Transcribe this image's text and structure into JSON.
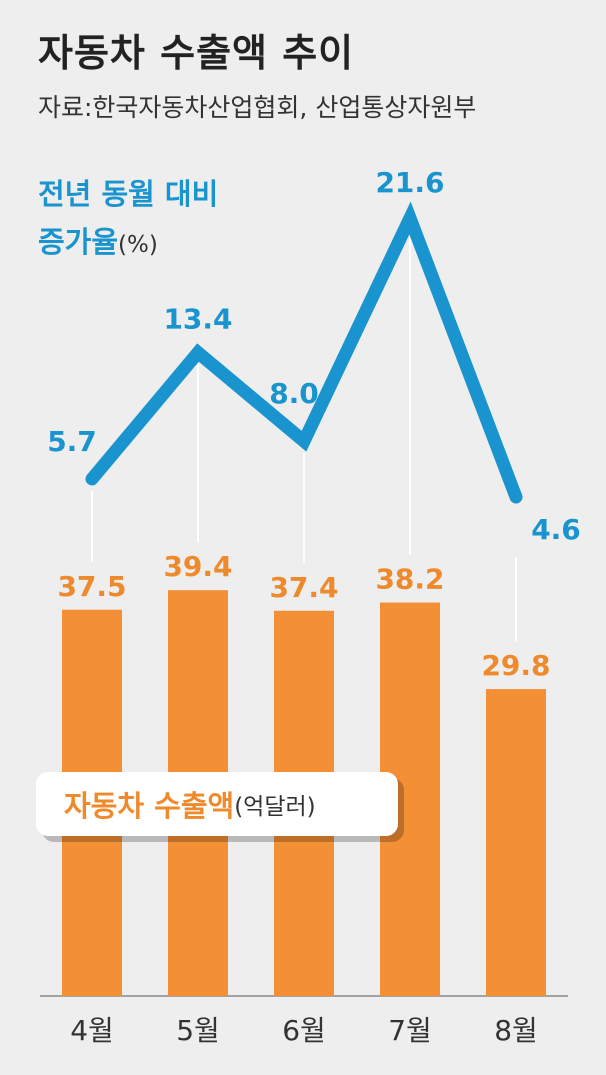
{
  "title": "자동차 수출액 추이",
  "source": "자료:한국자동차산업협회, 산업통상자원부",
  "colors": {
    "bar": "#f38f35",
    "line": "#1a94cf",
    "bar_label": "#ef8a2c",
    "line_label": "#1a94cf"
  },
  "line_legend": {
    "line1": "전년 동월 대비",
    "line2": "증가율",
    "unit": "(%)"
  },
  "bar_legend": {
    "name": "자동차 수출액",
    "unit": "(억달러)"
  },
  "chart_data": {
    "type": "bar",
    "categories": [
      "4월",
      "5월",
      "6월",
      "7월",
      "8월"
    ],
    "series": [
      {
        "name": "자동차 수출액",
        "unit": "억달러",
        "type": "bar",
        "values": [
          37.5,
          39.4,
          37.4,
          38.2,
          29.8
        ]
      },
      {
        "name": "전년 동월 대비 증가율",
        "unit": "%",
        "type": "line",
        "values": [
          5.7,
          13.4,
          8.0,
          21.6,
          4.6
        ]
      }
    ]
  }
}
